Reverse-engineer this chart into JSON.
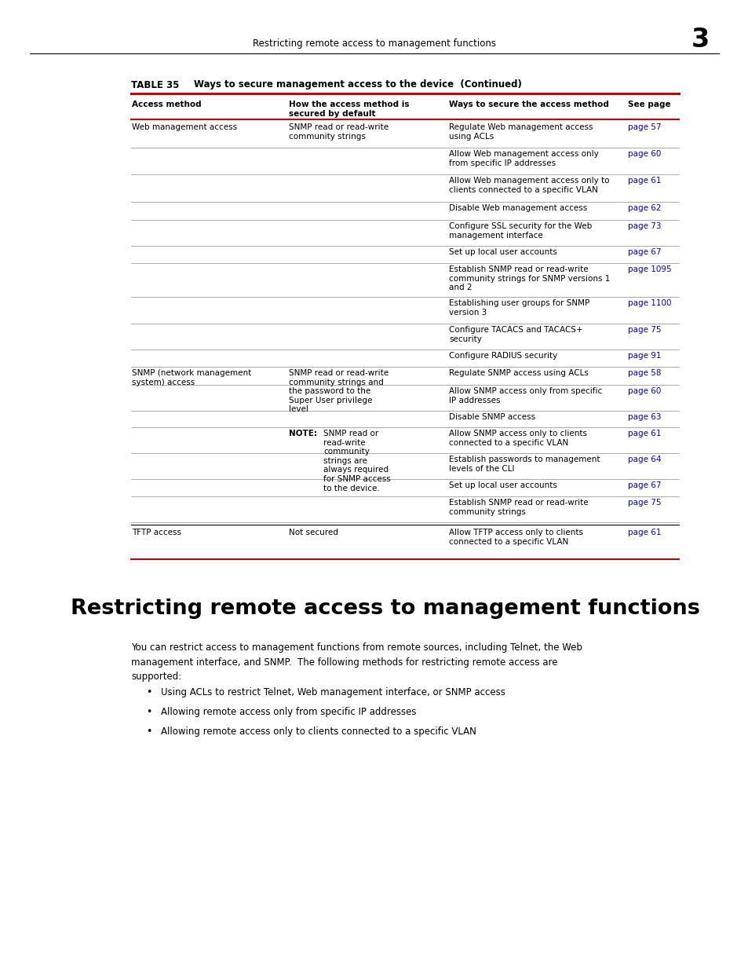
{
  "page_width": 9.54,
  "page_height": 12.35,
  "bg_color": "#ffffff",
  "header_text": "Restricting remote access to management functions",
  "header_num": "3",
  "table_title_bold": "TABLE 35",
  "table_title_rest": "Ways to secure management access to the device  (Continued)",
  "col_headers": [
    "Access method",
    "How the access method is\nsecured by default",
    "Ways to secure the access method",
    "See page"
  ],
  "link_color": "#0000cc",
  "section_title": "Restricting remote access to management functions",
  "section_body": "You can restrict access to management functions from remote sources, including Telnet, the Web\nmanagement interface, and SNMP.  The following methods for restricting remote access are\nsupported:",
  "bullets": [
    "Using ACLs to restrict Telnet, Web management interface, or SNMP access",
    "Allowing remote access only from specific IP addresses",
    "Allowing remote access only to clients connected to a specific VLAN"
  ]
}
